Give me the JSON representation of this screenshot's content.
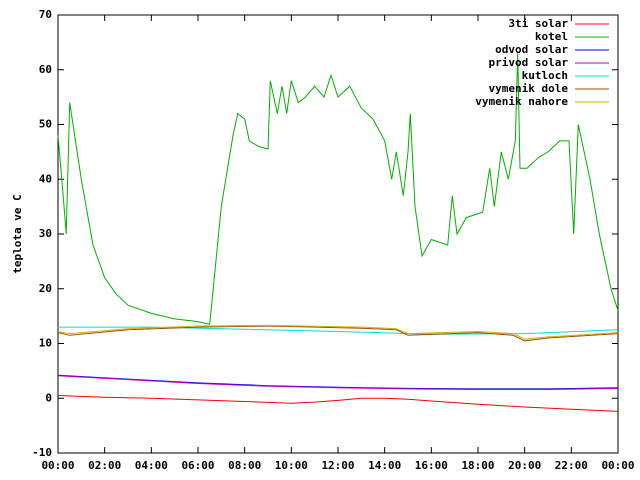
{
  "chart_data": {
    "type": "line",
    "y_label": "teplota ve C",
    "xlim": [
      0,
      24
    ],
    "xticks": [
      {
        "value": 0,
        "label": "00:00"
      },
      {
        "value": 2,
        "label": "02:00"
      },
      {
        "value": 4,
        "label": "04:00"
      },
      {
        "value": 6,
        "label": "06:00"
      },
      {
        "value": 8,
        "label": "08:00"
      },
      {
        "value": 10,
        "label": "10:00"
      },
      {
        "value": 12,
        "label": "12:00"
      },
      {
        "value": 14,
        "label": "14:00"
      },
      {
        "value": 16,
        "label": "16:00"
      },
      {
        "value": 18,
        "label": "18:00"
      },
      {
        "value": 20,
        "label": "20:00"
      },
      {
        "value": 22,
        "label": "22:00"
      },
      {
        "value": 24,
        "label": "00:00"
      }
    ],
    "ylim": [
      -10,
      70
    ],
    "yticks": [
      -10,
      0,
      10,
      20,
      30,
      40,
      50,
      60,
      70
    ],
    "grid": false,
    "legend": "top-right",
    "series": [
      {
        "name": "3ti solar",
        "color": "#ff0000",
        "x": [
          0,
          2,
          4,
          6,
          8,
          10,
          11,
          12,
          13,
          14,
          15,
          16,
          18,
          20,
          22,
          24
        ],
        "values": [
          0.5,
          0.2,
          0,
          -0.3,
          -0.6,
          -0.9,
          -0.7,
          -0.4,
          0,
          0,
          -0.2,
          -0.5,
          -1.1,
          -1.6,
          -2,
          -2.4
        ]
      },
      {
        "name": "kotel",
        "color": "#00b000",
        "x": [
          0,
          0.2,
          0.35,
          0.5,
          1,
          1.5,
          2,
          2.5,
          3,
          4,
          5,
          6,
          6.5,
          7,
          7.5,
          7.7,
          8,
          8.2,
          8.6,
          9,
          9.1,
          9.4,
          9.6,
          9.8,
          10,
          10.3,
          10.6,
          11,
          11.4,
          11.7,
          12,
          12.5,
          13,
          13.5,
          14,
          14.3,
          14.5,
          14.8,
          15,
          15.1,
          15.3,
          15.6,
          16,
          16.7,
          16.9,
          17.1,
          17.5,
          18.2,
          18.5,
          18.7,
          19,
          19.3,
          19.6,
          19.7,
          19.8,
          20.1,
          20.6,
          21,
          21.5,
          21.9,
          22.1,
          22.3,
          22.8,
          23.2,
          23.7,
          24
        ],
        "values": [
          48,
          38,
          30,
          54,
          40,
          28,
          22,
          19,
          17,
          15.5,
          14.5,
          14,
          13.5,
          35,
          48,
          52,
          51,
          47,
          46,
          45.5,
          58,
          52,
          57,
          52,
          58,
          54,
          55,
          57,
          55,
          59,
          55,
          57,
          53,
          51,
          47,
          40,
          45,
          37,
          45,
          52,
          35,
          26,
          29,
          28,
          37,
          30,
          33,
          34,
          42,
          35,
          45,
          40,
          47,
          63,
          42,
          42,
          44,
          45,
          47,
          47,
          30,
          50,
          40,
          30,
          20,
          16
        ]
      },
      {
        "name": "odvod solar",
        "color": "#0000ff",
        "x": [
          0,
          3,
          6,
          9,
          12,
          15,
          18,
          21,
          24
        ],
        "values": [
          4.2,
          3.5,
          2.8,
          2.3,
          2.0,
          1.8,
          1.7,
          1.7,
          1.9
        ]
      },
      {
        "name": "privod solar",
        "color": "#c000c0",
        "x": [
          0,
          3,
          6,
          9,
          12,
          15,
          18,
          21,
          24
        ],
        "values": [
          4.1,
          3.4,
          2.7,
          2.2,
          1.9,
          1.7,
          1.6,
          1.6,
          1.8
        ]
      },
      {
        "name": "kutloch",
        "color": "#00e0e0",
        "x": [
          0,
          4,
          8,
          12,
          16,
          20,
          24
        ],
        "values": [
          13,
          13,
          12.6,
          12.2,
          11.7,
          11.8,
          12.5
        ]
      },
      {
        "name": "vymenik dole",
        "color": "#a05000",
        "x": [
          0,
          0.5,
          3,
          6,
          9,
          13,
          14.5,
          15,
          18,
          19.5,
          20,
          21,
          24
        ],
        "values": [
          12,
          11.5,
          12.5,
          13,
          13.2,
          12.8,
          12.5,
          11.5,
          12,
          11.5,
          10.5,
          11,
          11.8
        ]
      },
      {
        "name": "vymenik nahore",
        "color": "#d0b000",
        "x": [
          0,
          0.5,
          3,
          6,
          9,
          13,
          14.5,
          15,
          18,
          19.5,
          20,
          21,
          24
        ],
        "values": [
          12.2,
          11.8,
          12.7,
          13.2,
          13.3,
          13,
          12.7,
          11.8,
          12.2,
          11.8,
          10.8,
          11.2,
          12
        ]
      }
    ]
  }
}
